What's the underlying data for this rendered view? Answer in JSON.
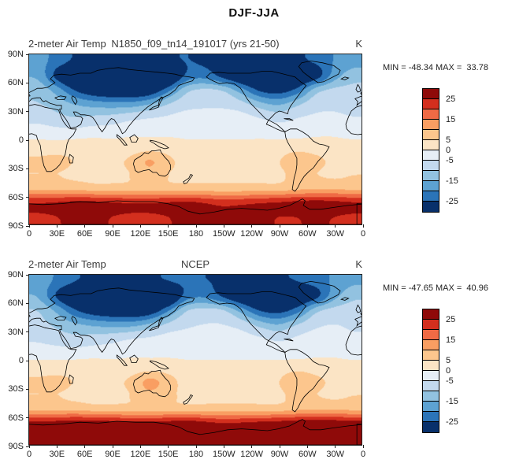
{
  "figure": {
    "title": "DJF-JJA"
  },
  "palette": {
    "colors": [
      "#8f0a09",
      "#d32f1e",
      "#ef6a45",
      "#f99e62",
      "#fcc68d",
      "#fbe4c5",
      "#e6eef6",
      "#c3d9ee",
      "#92c2e0",
      "#5da2d2",
      "#2b74b8",
      "#08306b"
    ],
    "boundaries": [
      25,
      20,
      15,
      10,
      5,
      0,
      -5,
      -10,
      -15,
      -20,
      -25
    ]
  },
  "chart_data": [
    {
      "type": "heatmap",
      "panel": "model",
      "left_title": "2-meter Air Temp",
      "center_title": "N1850_f09_tn14_191017 (yrs 21-50)",
      "units": "K",
      "stats": "MIN = -48.34 MAX =  33.78",
      "min": -48.34,
      "max": 33.78,
      "x_ticks": [
        "0",
        "30E",
        "60E",
        "90E",
        "120E",
        "150E",
        "180",
        "150W",
        "120W",
        "90W",
        "60W",
        "30W",
        "0"
      ],
      "y_ticks": [
        "90N",
        "60N",
        "30N",
        "0",
        "30S",
        "60S",
        "90S"
      ],
      "colorbar_tick_labels": [
        "25",
        "15",
        "5",
        "0",
        "-5",
        "-15",
        "-25"
      ],
      "colorbar_tick_positions": [
        1,
        3,
        5,
        6,
        7,
        9,
        11
      ],
      "grid": {
        "lon_start": 0,
        "lon_end": 360,
        "lat_start": 90,
        "lat_end": -90,
        "values": [
          [
            -18,
            -22,
            -26,
            -28,
            -30,
            -30,
            -28,
            -26,
            -25,
            -26,
            -27,
            -28,
            -28,
            -27,
            -26,
            -24,
            -20,
            -17
          ],
          [
            -16,
            -28,
            -36,
            -40,
            -43,
            -45,
            -44,
            -38,
            -24,
            -22,
            -28,
            -34,
            -38,
            -39,
            -34,
            -30,
            -18,
            -12
          ],
          [
            -11,
            -17,
            -26,
            -31,
            -33,
            -34,
            -32,
            -22,
            -11,
            -9,
            -10,
            -18,
            -27,
            -29,
            -24,
            -12,
            -9,
            -9
          ],
          [
            -10,
            -12,
            -15,
            -17,
            -18,
            -18,
            -15,
            -10,
            -7,
            -6,
            -6,
            -8,
            -13,
            -16,
            -11,
            -7,
            -6,
            -7
          ],
          [
            -7,
            -9,
            -10,
            -9,
            -8,
            -6,
            -5,
            -4,
            -3,
            -3,
            -3,
            -3,
            -5,
            -7,
            -5,
            -4,
            -4,
            -5
          ],
          [
            -2,
            -3,
            -3,
            -2,
            -2,
            -1,
            -1,
            -1,
            -1,
            -1,
            -1,
            -1,
            -1,
            -2,
            -2,
            -1,
            -1,
            -2
          ],
          [
            2,
            2,
            3,
            3,
            2,
            2,
            2,
            2,
            1,
            1,
            1,
            1,
            1,
            2,
            3,
            2,
            2,
            2
          ],
          [
            6,
            7,
            5,
            4,
            4,
            6,
            11,
            7,
            3,
            3,
            3,
            3,
            3,
            5,
            9,
            7,
            4,
            5
          ],
          [
            5,
            5,
            4,
            4,
            4,
            5,
            8,
            5,
            4,
            4,
            4,
            4,
            4,
            4,
            6,
            5,
            4,
            5
          ],
          [
            8,
            8,
            8,
            7,
            7,
            7,
            7,
            7,
            7,
            7,
            7,
            7,
            7,
            7,
            8,
            9,
            9,
            8
          ],
          [
            26,
            27,
            28,
            28,
            27,
            26,
            26,
            27,
            28,
            26,
            24,
            25,
            26,
            27,
            28,
            29,
            28,
            27
          ],
          [
            24,
            25,
            26,
            26,
            25,
            24,
            24,
            25,
            26,
            26,
            27,
            27,
            26,
            25,
            25,
            26,
            25,
            24
          ]
        ]
      }
    },
    {
      "type": "heatmap",
      "panel": "ncep",
      "left_title": "2-meter Air Temp",
      "center_title": "NCEP",
      "units": "K",
      "stats": "MIN = -47.65 MAX =  40.96",
      "min": -47.65,
      "max": 40.96,
      "x_ticks": [
        "0",
        "30E",
        "60E",
        "90E",
        "120E",
        "150E",
        "180",
        "150W",
        "120W",
        "90W",
        "60W",
        "30W",
        "0"
      ],
      "y_ticks": [
        "90N",
        "60N",
        "30N",
        "0",
        "30S",
        "60S",
        "90S"
      ],
      "colorbar_tick_labels": [
        "25",
        "15",
        "5",
        "0",
        "-5",
        "-15",
        "-25"
      ],
      "colorbar_tick_positions": [
        1,
        3,
        5,
        6,
        7,
        9,
        11
      ],
      "grid": {
        "lon_start": 0,
        "lon_end": 360,
        "lat_start": 90,
        "lat_end": -90,
        "values": [
          [
            -17,
            -21,
            -25,
            -27,
            -29,
            -29,
            -27,
            -25,
            -24,
            -25,
            -26,
            -27,
            -27,
            -26,
            -25,
            -23,
            -19,
            -16
          ],
          [
            -15,
            -27,
            -35,
            -39,
            -42,
            -44,
            -43,
            -37,
            -23,
            -21,
            -27,
            -33,
            -37,
            -38,
            -33,
            -29,
            -17,
            -11
          ],
          [
            -10,
            -16,
            -25,
            -30,
            -32,
            -33,
            -31,
            -21,
            -10,
            -8,
            -9,
            -17,
            -26,
            -28,
            -23,
            -11,
            -8,
            -8
          ],
          [
            -9,
            -11,
            -14,
            -16,
            -17,
            -17,
            -14,
            -9,
            -6,
            -5,
            -5,
            -7,
            -12,
            -15,
            -10,
            -6,
            -5,
            -6
          ],
          [
            -6,
            -8,
            -9,
            -8,
            -7,
            -5,
            -4,
            -3,
            -3,
            -3,
            -3,
            -3,
            -4,
            -6,
            -4,
            -3,
            -3,
            -4
          ],
          [
            -2,
            -2,
            -3,
            -2,
            -2,
            -1,
            -1,
            -1,
            -1,
            -1,
            -1,
            -1,
            -1,
            -2,
            -2,
            -1,
            -1,
            -2
          ],
          [
            2,
            2,
            3,
            3,
            2,
            2,
            2,
            2,
            1,
            1,
            1,
            1,
            1,
            2,
            3,
            2,
            2,
            2
          ],
          [
            6,
            7,
            5,
            4,
            4,
            6,
            12,
            8,
            3,
            3,
            3,
            3,
            3,
            5,
            10,
            7,
            4,
            5
          ],
          [
            5,
            5,
            4,
            4,
            4,
            5,
            9,
            6,
            4,
            4,
            4,
            4,
            4,
            4,
            6,
            5,
            4,
            5
          ],
          [
            8,
            8,
            8,
            7,
            7,
            7,
            7,
            7,
            7,
            7,
            7,
            7,
            7,
            7,
            8,
            9,
            9,
            8
          ],
          [
            28,
            29,
            30,
            30,
            29,
            28,
            28,
            29,
            30,
            28,
            26,
            27,
            28,
            29,
            30,
            31,
            30,
            29
          ],
          [
            30,
            31,
            32,
            32,
            31,
            30,
            30,
            31,
            32,
            32,
            33,
            33,
            32,
            31,
            31,
            32,
            31,
            30
          ]
        ]
      }
    }
  ]
}
